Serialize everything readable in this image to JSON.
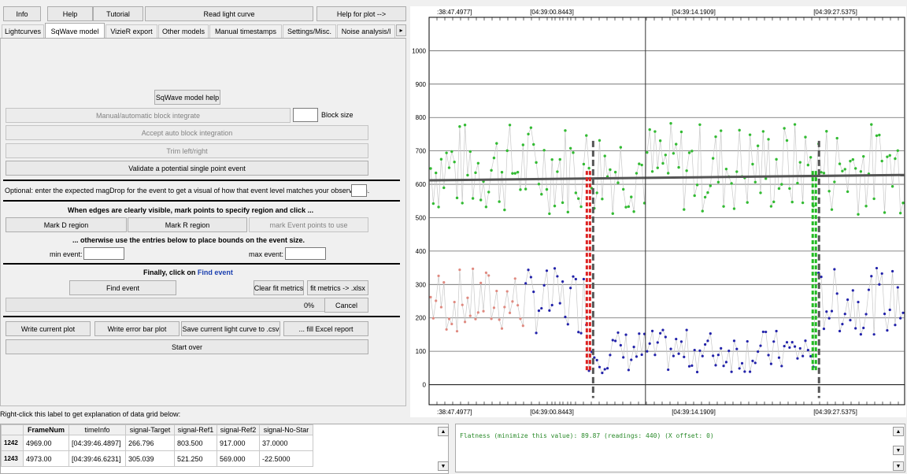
{
  "toolbar": {
    "info": "Info",
    "help": "Help",
    "tutorial": "Tutorial",
    "read_light_curve": "Read light curve",
    "help_for_plot": "Help for plot -->"
  },
  "tabs": [
    {
      "label": "Lightcurves"
    },
    {
      "label": "SqWave model"
    },
    {
      "label": "VizieR export"
    },
    {
      "label": "Other models"
    },
    {
      "label": "Manual timestamps"
    },
    {
      "label": "Settings/Misc."
    },
    {
      "label": "Noise analysis/l"
    }
  ],
  "tab_scroll_glyph": "▸",
  "panel": {
    "sqwave_help": "SqWave model help",
    "manual_block": "Manual/automatic block integrate",
    "block_size_label": "Block size",
    "accept_auto": "Accept auto block integration",
    "trim": "Trim left/right",
    "validate": "Validate a potential single point event",
    "optional_text": "Optional: enter the expected magDrop for the event to get a visual of how that event level matches your observation.",
    "edges_text": "When edges are clearly visible, mark points to specify region and click ...",
    "mark_d": "Mark D region",
    "mark_r": "Mark R region",
    "mark_event": "mark Event points to use",
    "otherwise_text": "... otherwise use the entries below to place bounds on the event size.",
    "min_event": "min event:",
    "max_event": "max event:",
    "finally_text": "Finally, click on",
    "finally_link": "Find event",
    "find_event": "Find event",
    "clear_fit": "Clear fit metrics",
    "fit_xlsx": "fit metrics -> .xlsx",
    "progress": "0%",
    "cancel": "Cancel",
    "write_plot": "Write current plot",
    "write_error": "Write error bar plot",
    "save_csv": "Save current light curve to .csv",
    "fill_excel": "... fill Excel report",
    "start_over": "Start over"
  },
  "grid_hint": "Right-click this label to get explanation of data grid below:",
  "grid": {
    "columns": [
      "FrameNum",
      "timeInfo",
      "signal-Target",
      "signal-Ref1",
      "signal-Ref2",
      "signal-No-Star"
    ],
    "rows": [
      {
        "idx": "1242",
        "cells": [
          "4969.00",
          "[04:39:46.4897]",
          "266.796",
          "803.500",
          "917.000",
          "37.0000"
        ]
      },
      {
        "idx": "1243",
        "cells": [
          "4973.00",
          "[04:39:46.6231]",
          "305.039",
          "521.250",
          "569.000",
          "-22.5000"
        ]
      }
    ]
  },
  "log_text": "Flatness (minimize this value): 89.87 (readings: 440) (X offset: 0)",
  "scroll_glyphs": {
    "up": "▲",
    "down": "▼",
    "bottom": "▼"
  },
  "chart_data": {
    "type": "scatter",
    "x_tick_labels": [
      ":38:47.4977]",
      "[04:39:00.8443]",
      "[04:39:14.1909]",
      "[04:39:27.5375]"
    ],
    "yticks": [
      0,
      100,
      200,
      300,
      400,
      500,
      600,
      700,
      800,
      900,
      1000
    ],
    "ylim": [
      -60,
      1100
    ],
    "grid": true,
    "series": [
      {
        "color": "#33bb33",
        "role": "reference",
        "baseline": 650,
        "scatter": 140
      },
      {
        "color": "#2222aa",
        "role": "target",
        "baseline_out": 250,
        "baseline_in": 100
      },
      {
        "color": "#e08a80",
        "role": "excluded",
        "baseline": 260
      }
    ],
    "fit_line": {
      "color": "#555555",
      "start": 612,
      "end": 628
    },
    "d_edge_fraction": 0.335,
    "r_edge_fraction": 0.81,
    "d_color": "#dd2222",
    "r_color": "#22bb22",
    "cursor_fraction": 0.455,
    "event_count": 440
  }
}
